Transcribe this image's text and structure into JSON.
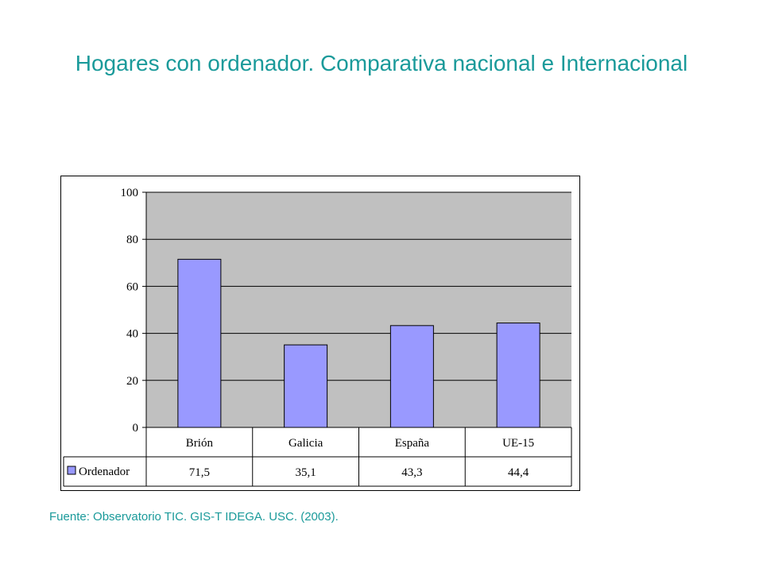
{
  "title": "Hogares con ordenador.  Comparativa nacional e Internacional",
  "source": "Fuente: Observatorio TIC. GIS-T IDEGA. USC. (2003).",
  "chart_data": {
    "type": "bar",
    "categories": [
      "Brión",
      "Galicia",
      "España",
      "UE-15"
    ],
    "series": [
      {
        "name": "Ordenador",
        "values": [
          71.5,
          35.1,
          43.3,
          44.4
        ],
        "value_labels": [
          "71,5",
          "35,1",
          "43,3",
          "44,4"
        ],
        "color": "#9999ff"
      }
    ],
    "ylim": [
      0,
      100
    ],
    "yticks": [
      "0",
      "20",
      "40",
      "60",
      "80",
      "100"
    ],
    "grid": true,
    "plot_background": "#c0c0c0",
    "data_table": true
  }
}
